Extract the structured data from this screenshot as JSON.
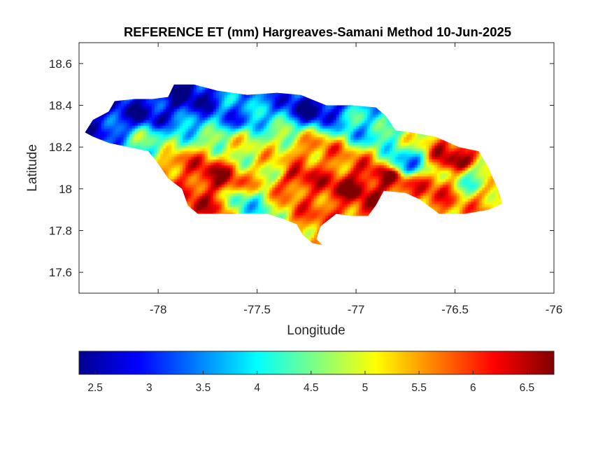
{
  "figure": {
    "title": "REFERENCE ET (mm) Hargreaves-Samani Method  10-Jun-2025",
    "xlabel": "Longitude",
    "ylabel": "Latitude"
  },
  "chart_data": {
    "type": "heatmap",
    "title": "REFERENCE ET (mm) Hargreaves-Samani Method  10-Jun-2025",
    "xlabel": "Longitude",
    "ylabel": "Latitude",
    "xlim": [
      -78.4,
      -76
    ],
    "ylim": [
      17.5,
      18.7
    ],
    "xticks": [
      -78,
      -77.5,
      -77,
      -76.5,
      -76
    ],
    "xtick_labels": [
      "-78",
      "-77.5",
      "-77",
      "-76.5",
      "-76"
    ],
    "yticks": [
      17.6,
      17.8,
      18,
      18.2,
      18.4,
      18.6
    ],
    "ytick_labels": [
      "17.6",
      "17.8",
      "18",
      "18.2",
      "18.4",
      "18.6"
    ],
    "grid": false,
    "colormap": "jet",
    "colorbar": {
      "orientation": "horizontal",
      "location": "bottom",
      "clim": [
        2.35,
        6.75
      ],
      "ticks": [
        2.5,
        3,
        3.5,
        4,
        4.5,
        5,
        5.5,
        6,
        6.5
      ],
      "tick_labels": [
        "2.5",
        "3",
        "3.5",
        "4",
        "4.5",
        "5",
        "5.5",
        "6",
        "6.5"
      ]
    },
    "region_outline": [
      [
        -78.37,
        18.27
      ],
      [
        -78.33,
        18.33
      ],
      [
        -78.25,
        18.37
      ],
      [
        -78.22,
        18.42
      ],
      [
        -78.12,
        18.43
      ],
      [
        -78.03,
        18.43
      ],
      [
        -77.95,
        18.44
      ],
      [
        -77.92,
        18.5
      ],
      [
        -77.82,
        18.5
      ],
      [
        -77.7,
        18.47
      ],
      [
        -77.55,
        18.45
      ],
      [
        -77.4,
        18.46
      ],
      [
        -77.28,
        18.45
      ],
      [
        -77.15,
        18.4
      ],
      [
        -77.02,
        18.4
      ],
      [
        -76.9,
        18.39
      ],
      [
        -76.85,
        18.35
      ],
      [
        -76.8,
        18.28
      ],
      [
        -76.72,
        18.27
      ],
      [
        -76.6,
        18.25
      ],
      [
        -76.48,
        18.2
      ],
      [
        -76.38,
        18.18
      ],
      [
        -76.33,
        18.1
      ],
      [
        -76.28,
        17.99
      ],
      [
        -76.26,
        17.93
      ],
      [
        -76.33,
        17.9
      ],
      [
        -76.45,
        17.88
      ],
      [
        -76.58,
        17.88
      ],
      [
        -76.68,
        17.95
      ],
      [
        -76.75,
        17.98
      ],
      [
        -76.86,
        17.99
      ],
      [
        -76.9,
        17.92
      ],
      [
        -76.94,
        17.87
      ],
      [
        -77.02,
        17.87
      ],
      [
        -77.1,
        17.88
      ],
      [
        -77.18,
        17.82
      ],
      [
        -77.2,
        17.76
      ],
      [
        -77.17,
        17.73
      ],
      [
        -77.22,
        17.74
      ],
      [
        -77.27,
        17.78
      ],
      [
        -77.3,
        17.83
      ],
      [
        -77.38,
        17.86
      ],
      [
        -77.45,
        17.88
      ],
      [
        -77.55,
        17.88
      ],
      [
        -77.7,
        17.88
      ],
      [
        -77.8,
        17.88
      ],
      [
        -77.85,
        17.92
      ],
      [
        -77.88,
        18.0
      ],
      [
        -77.95,
        18.05
      ],
      [
        -78.0,
        18.12
      ],
      [
        -78.05,
        18.18
      ],
      [
        -78.15,
        18.2
      ],
      [
        -78.25,
        18.22
      ],
      [
        -78.33,
        18.25
      ]
    ],
    "et_field_centers": [
      {
        "lon": -78.05,
        "lat": 18.38,
        "value": 2.7
      },
      {
        "lon": -78.25,
        "lat": 18.32,
        "value": 2.9
      },
      {
        "lon": -77.85,
        "lat": 18.45,
        "value": 2.6
      },
      {
        "lon": -77.6,
        "lat": 18.36,
        "value": 3.4
      },
      {
        "lon": -77.2,
        "lat": 18.4,
        "value": 2.6
      },
      {
        "lon": -76.95,
        "lat": 18.3,
        "value": 3.9
      },
      {
        "lon": -78.05,
        "lat": 18.22,
        "value": 4.3
      },
      {
        "lon": -77.55,
        "lat": 18.2,
        "value": 4.8
      },
      {
        "lon": -77.72,
        "lat": 18.05,
        "value": 6.4
      },
      {
        "lon": -77.75,
        "lat": 17.92,
        "value": 6.1
      },
      {
        "lon": -77.55,
        "lat": 17.92,
        "value": 4.2
      },
      {
        "lon": -77.3,
        "lat": 18.05,
        "value": 6.2
      },
      {
        "lon": -77.2,
        "lat": 18.15,
        "value": 5.8
      },
      {
        "lon": -77.4,
        "lat": 18.1,
        "value": 5.1
      },
      {
        "lon": -77.0,
        "lat": 18.0,
        "value": 6.6
      },
      {
        "lon": -76.85,
        "lat": 18.05,
        "value": 6.5
      },
      {
        "lon": -77.05,
        "lat": 17.92,
        "value": 6.0
      },
      {
        "lon": -76.75,
        "lat": 18.12,
        "value": 3.8
      },
      {
        "lon": -76.62,
        "lat": 18.0,
        "value": 5.9
      },
      {
        "lon": -76.5,
        "lat": 18.15,
        "value": 6.4
      },
      {
        "lon": -76.4,
        "lat": 18.05,
        "value": 4.5
      },
      {
        "lon": -76.32,
        "lat": 17.95,
        "value": 5.5
      },
      {
        "lon": -77.2,
        "lat": 17.78,
        "value": 5.6
      },
      {
        "lon": -77.9,
        "lat": 18.08,
        "value": 5.9
      }
    ]
  }
}
